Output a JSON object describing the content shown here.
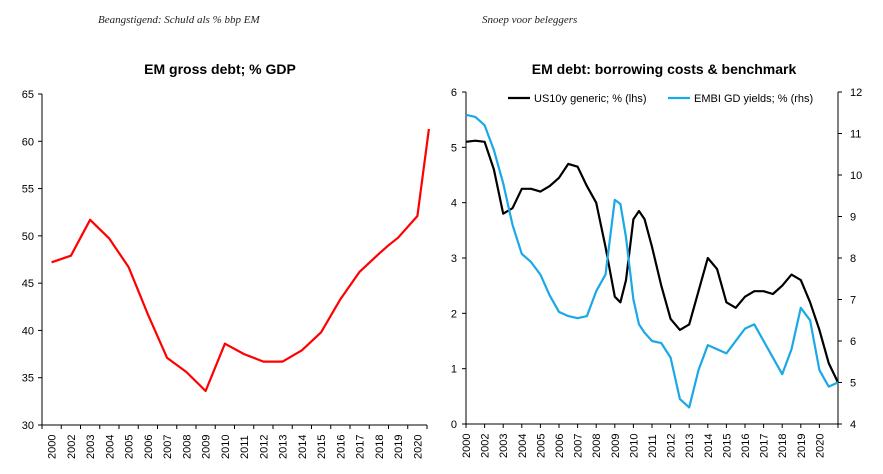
{
  "captions": {
    "left": "Beangstigend: Schuld als % bbp EM",
    "right": "Snoep voor beleggers"
  },
  "chart_data": [
    {
      "type": "line",
      "title": "EM gross debt; % GDP",
      "x_tick_labels": [
        "2000",
        "2002",
        "2003",
        "2004",
        "2005",
        "2006",
        "2007",
        "2008",
        "2009",
        "2010",
        "2011",
        "2012",
        "2013",
        "2014",
        "2015",
        "2016",
        "2017",
        "2018",
        "2019",
        "2020"
      ],
      "ylim": [
        30,
        65
      ],
      "y_ticks": [
        30,
        35,
        40,
        45,
        50,
        55,
        60,
        65
      ],
      "series": [
        {
          "name": "EM gross debt",
          "color": "#ff0000",
          "x": [
            0,
            1,
            2,
            3,
            4,
            5,
            6,
            7,
            7.5,
            8,
            9,
            10,
            11,
            12,
            13,
            14,
            15,
            16,
            17,
            17.5,
            18,
            19
          ],
          "values": [
            47.2,
            47.9,
            51.7,
            49.7,
            46.7,
            41.7,
            37.1,
            35.6,
            34.6,
            33.6,
            38.6,
            37.5,
            36.7,
            36.7,
            37.9,
            39.8,
            43.3,
            46.2,
            48.1,
            49.0,
            49.8,
            52.1
          ]
        }
      ],
      "last_point": {
        "x": 19.6,
        "value": 61.3
      }
    },
    {
      "type": "line",
      "title": "EM debt: borrowing costs & benchmark",
      "x_tick_labels": [
        "2000",
        "2002",
        "2003",
        "2004",
        "2005",
        "2006",
        "2007",
        "2008",
        "2009",
        "2010",
        "2011",
        "2012",
        "2013",
        "2014",
        "2015",
        "2016",
        "2017",
        "2018",
        "2019",
        "2020"
      ],
      "ylim_left": [
        0,
        6
      ],
      "y_ticks_left": [
        0,
        1,
        2,
        3,
        4,
        5,
        6
      ],
      "ylim_right": [
        4,
        12
      ],
      "y_ticks_right": [
        4,
        5,
        6,
        7,
        8,
        9,
        10,
        11,
        12
      ],
      "legend": [
        "US10y generic; % (lhs)",
        "EMBI GD yields; % (rhs)"
      ],
      "series": [
        {
          "name": "US10y generic; % (lhs)",
          "axis": "left",
          "color": "#000000",
          "x": [
            0,
            0.5,
            1,
            1.5,
            2,
            2.5,
            3,
            3.5,
            4,
            4.5,
            5,
            5.5,
            6,
            6.5,
            7,
            7.5,
            8,
            8.3,
            8.6,
            9,
            9.3,
            9.6,
            10,
            10.5,
            11,
            11.5,
            12,
            12.5,
            13,
            13.5,
            14,
            14.5,
            15,
            15.5,
            16,
            16.5,
            17,
            17.5,
            18,
            18.5,
            19,
            19.5,
            20
          ],
          "values": [
            5.1,
            5.12,
            5.1,
            4.6,
            3.8,
            3.9,
            4.25,
            4.25,
            4.2,
            4.3,
            4.45,
            4.7,
            4.65,
            4.3,
            4.0,
            3.2,
            2.3,
            2.2,
            2.6,
            3.7,
            3.85,
            3.7,
            3.2,
            2.5,
            1.9,
            1.7,
            1.8,
            2.4,
            3.0,
            2.8,
            2.2,
            2.1,
            2.3,
            2.4,
            2.4,
            2.35,
            2.5,
            2.7,
            2.6,
            2.2,
            1.7,
            1.1,
            0.75
          ]
        },
        {
          "name": "EMBI GD yields; % (rhs)",
          "axis": "right",
          "color": "#1aa8e6",
          "x": [
            0,
            0.5,
            1,
            1.5,
            2,
            2.5,
            3,
            3.5,
            4,
            4.5,
            5,
            5.5,
            6,
            6.5,
            7,
            7.5,
            8,
            8.3,
            8.6,
            9,
            9.3,
            9.6,
            10,
            10.5,
            11,
            11.5,
            12,
            12.5,
            13,
            13.5,
            14,
            14.5,
            15,
            15.5,
            16,
            16.5,
            17,
            17.5,
            18,
            18.5,
            19,
            19.5,
            20
          ],
          "values": [
            11.45,
            11.4,
            11.2,
            10.6,
            9.8,
            8.8,
            8.1,
            7.9,
            7.6,
            7.1,
            6.7,
            6.6,
            6.55,
            6.6,
            7.2,
            7.6,
            9.4,
            9.3,
            8.5,
            7.0,
            6.4,
            6.2,
            6.0,
            5.95,
            5.6,
            4.6,
            4.4,
            5.3,
            5.9,
            5.8,
            5.7,
            6.0,
            6.3,
            6.4,
            6.0,
            5.6,
            5.2,
            5.8,
            6.8,
            6.5,
            5.3,
            4.9,
            5.0
          ]
        }
      ]
    }
  ]
}
